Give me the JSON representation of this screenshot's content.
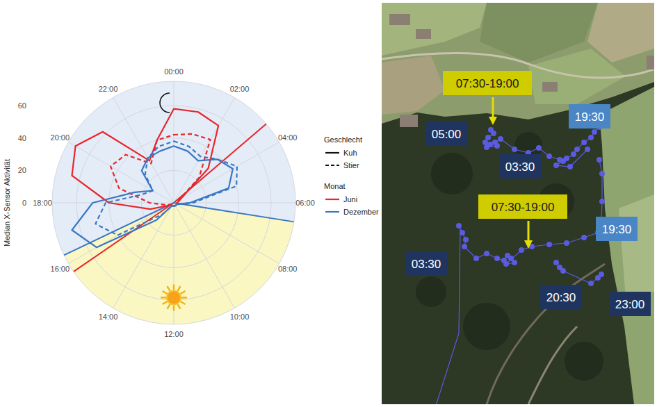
{
  "chart_data": {
    "type": "polar_line",
    "y_label": "Median X-Sensor Aktivität",
    "x": [
      0,
      1,
      2,
      3,
      4,
      5,
      6,
      7,
      8,
      9,
      10,
      11,
      12,
      13,
      14,
      15,
      16,
      17,
      18,
      19,
      20,
      21,
      22,
      23
    ],
    "xlim": [
      0,
      24
    ],
    "xticks": [
      {
        "value": 0,
        "label": "00:00"
      },
      {
        "value": 2,
        "label": "02:00"
      },
      {
        "value": 4,
        "label": "04:00"
      },
      {
        "value": 6,
        "label": "06:00"
      },
      {
        "value": 8,
        "label": "08:00"
      },
      {
        "value": 10,
        "label": "10:00"
      },
      {
        "value": 12,
        "label": "12:00"
      },
      {
        "value": 14,
        "label": "14:00"
      },
      {
        "value": 16,
        "label": "16:00"
      },
      {
        "value": 18,
        "label": "18:00"
      },
      {
        "value": 20,
        "label": "20:00"
      },
      {
        "value": 22,
        "label": "22:00"
      }
    ],
    "ylim": [
      0,
      75
    ],
    "yticks": [
      0,
      20,
      40,
      60
    ],
    "grid": true,
    "legend": "right",
    "legend_groups": [
      {
        "title": "Geschlecht",
        "entries": [
          {
            "label": "Kuh",
            "line_style": "solid"
          },
          {
            "label": "Stier",
            "line_style": "dashed"
          }
        ]
      },
      {
        "title": "Monat",
        "entries": [
          {
            "label": "Juni",
            "color": "#e8262b"
          },
          {
            "label": "Dezember",
            "color": "#3a78c3"
          }
        ]
      }
    ],
    "series": [
      {
        "sex": "Kuh",
        "month": "Juni",
        "values": [
          58,
          58,
          55,
          30,
          5,
          3,
          2,
          2,
          2,
          2,
          2,
          2,
          2,
          2,
          2,
          2,
          3,
          15,
          40,
          65,
          70,
          62,
          30,
          40
        ]
      },
      {
        "sex": "Stier",
        "month": "Juni",
        "values": [
          42,
          44,
          45,
          22,
          4,
          2,
          2,
          2,
          2,
          2,
          2,
          2,
          2,
          2,
          2,
          2,
          2,
          5,
          15,
          35,
          45,
          42,
          28,
          40
        ]
      },
      {
        "sex": "Kuh",
        "month": "Dezember",
        "values": [
          35,
          33,
          30,
          38,
          42,
          35,
          10,
          3,
          2,
          2,
          2,
          2,
          2,
          2,
          2,
          15,
          55,
          65,
          50,
          25,
          15,
          28,
          32,
          33
        ]
      },
      {
        "sex": "Stier",
        "month": "Dezember",
        "values": [
          38,
          36,
          33,
          38,
          45,
          40,
          12,
          3,
          2,
          2,
          2,
          2,
          2,
          2,
          2,
          10,
          40,
          50,
          42,
          20,
          15,
          25,
          32,
          36
        ]
      }
    ],
    "reference_lines": [
      {
        "color": "#e8262b",
        "x": [
          3.3,
          15.7
        ]
      },
      {
        "color": "#3a78c3",
        "x": [
          6.6,
          16.3
        ]
      }
    ],
    "day_hours": [
      6.6,
      16.3
    ]
  },
  "map": {
    "labels": [
      {
        "text": "07:30-19:00",
        "color": "#cfcc00"
      },
      {
        "text": "05:00",
        "color": "#1f3560"
      },
      {
        "text": "19:30",
        "color": "#4a86c6"
      },
      {
        "text": "03:30",
        "color": "#1f3560"
      },
      {
        "text": "07:30-19:00",
        "color": "#cfcc00"
      },
      {
        "text": "19:30",
        "color": "#4a86c6"
      },
      {
        "text": "03:30",
        "color": "#1f3560"
      },
      {
        "text": "20:30",
        "color": "#1f3560"
      },
      {
        "text": "23:00",
        "color": "#1f3560"
      }
    ]
  }
}
